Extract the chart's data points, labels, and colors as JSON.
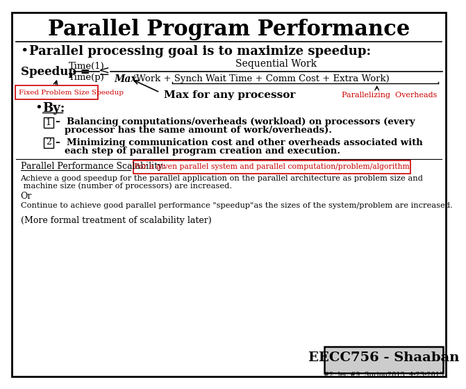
{
  "title": "Parallel Program Performance",
  "bg_color": "#ffffff",
  "border_color": "#000000",
  "bullet1": "Parallel processing goal is to maximize speedup:",
  "speedup_label": "Speedup =",
  "frac_num": "Time(1)",
  "frac_den": "Time(p)",
  "leq": "≤",
  "seq_work": "Sequential Work",
  "max_denom": "(Work + Synch Wait Time + Comm Cost + Extra Work)",
  "max_italic": "Max",
  "fixed_label": "Fixed Problem Size Speedup",
  "max_proc": "Max for any processor",
  "par_overhead": "Parallelizing  Overheads",
  "by_label": "By:",
  "item1a": "–  Balancing computations/overheads (workload) on processors (every",
  "item1b": "processor has the same amount of work/overheads).",
  "item2a": "–  Minimizing communication cost and other overheads associated with",
  "item2b": "each step of parallel program creation and execution.",
  "scalability_label": "Parallel Performance Scalability:",
  "scalability_box": "For a given parallel system and parallel computation/problem/algorithm",
  "achieve1": "Achieve a good speedup for the parallel application on the parallel architecture as problem size and",
  "achieve2": " machine size (number of processors) are increased.",
  "or_text": "Or",
  "continue_text": "Continue to achieve good parallel performance \"speedup\"as the sizes of the system/problem are increased.",
  "more_text": "(More formal treatment of scalability later)",
  "footer_box": "EECC756 - Shaaban",
  "footer_sub": "#2  lec #9  Spring2013  4-23-2013",
  "red_color": "#cc0000",
  "black_color": "#000000",
  "gray_color": "#cccccc"
}
